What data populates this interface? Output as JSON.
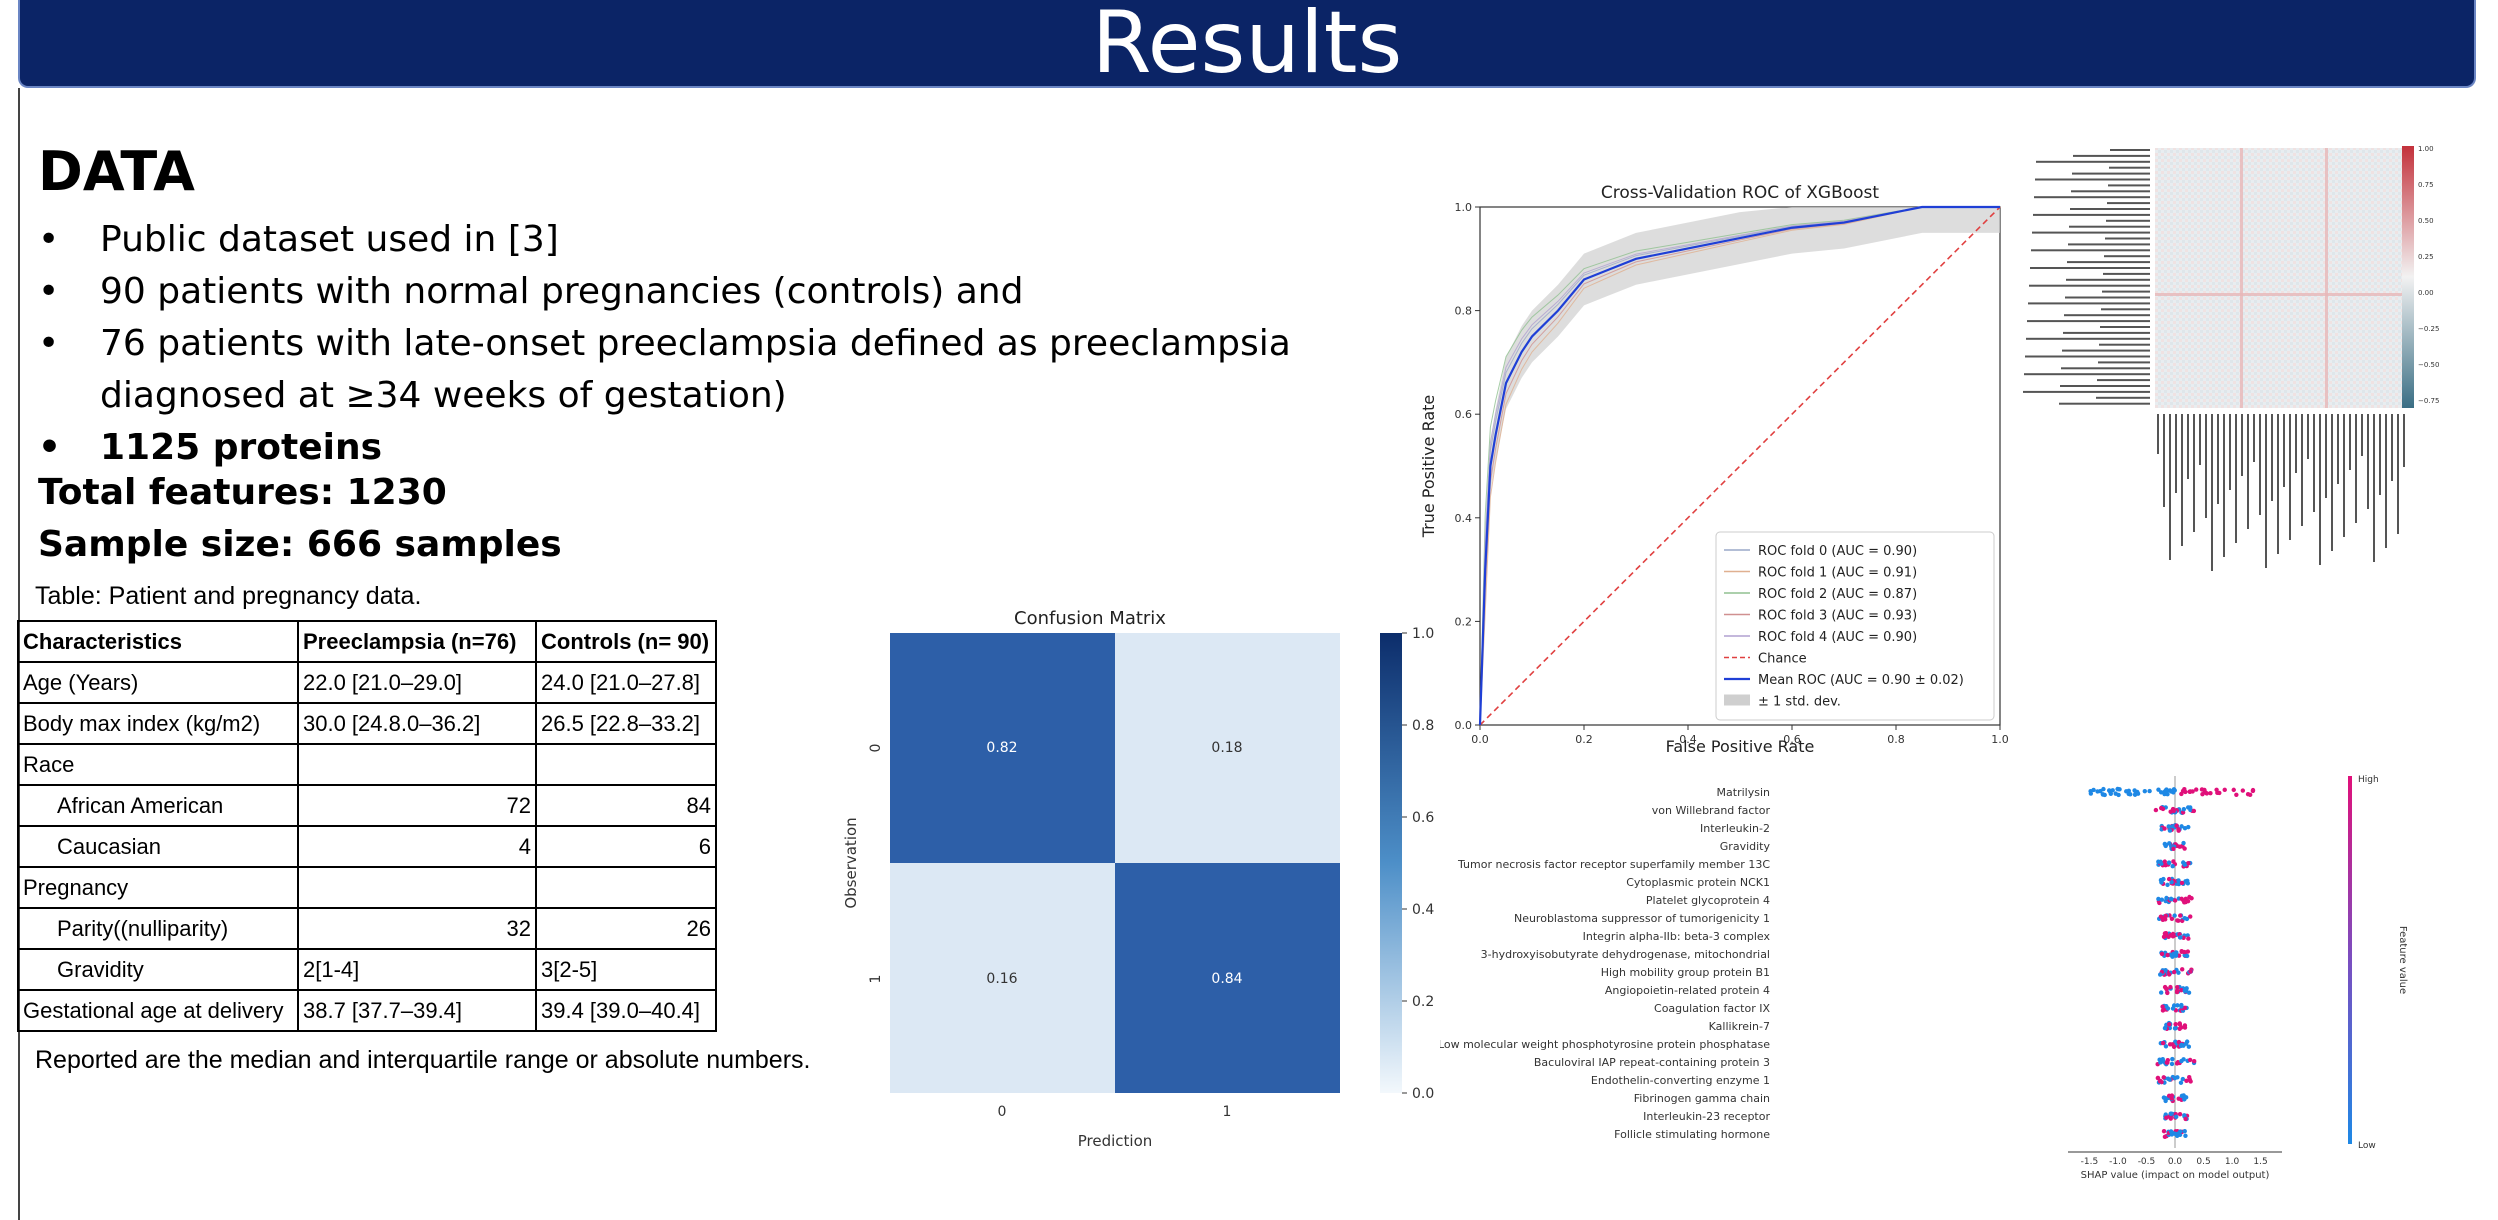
{
  "title": "Results",
  "data_heading": "DATA",
  "bullets": [
    {
      "text": "Public dataset used in [3]",
      "bold": false
    },
    {
      "text": "90 patients with normal pregnancies (controls) and",
      "bold": false
    },
    {
      "text": " 76 patients with late-onset preeclampsia defined as preeclampsia diagnosed at ≥34 weeks of gestation)",
      "bold": false
    },
    {
      "text": "1125 proteins",
      "bold": true
    }
  ],
  "bullet_symbol": "•",
  "total_features": "Total features: 1230",
  "sample_size": "Sample size:  666 samples",
  "table": {
    "caption": "Table:  Patient and pregnancy data.",
    "headers": [
      "Characteristics",
      "Preeclampsia (n=76)",
      "Controls (n= 90)"
    ],
    "rows": [
      {
        "label": "Age (Years)",
        "pe": "22.0 [21.0–29.0]",
        "ctrl": "24.0 [21.0–27.8]",
        "indent": false,
        "numeric": false
      },
      {
        "label": "Body max index (kg/m2)",
        "pe": "30.0 [24.8.0–36.2]",
        "ctrl": "26.5 [22.8–33.2]",
        "indent": false,
        "numeric": false
      },
      {
        "label": "Race",
        "pe": "",
        "ctrl": "",
        "indent": false,
        "numeric": false
      },
      {
        "label": "African American",
        "pe": "72",
        "ctrl": "84",
        "indent": true,
        "numeric": true
      },
      {
        "label": "Caucasian",
        "pe": "4",
        "ctrl": "6",
        "indent": true,
        "numeric": true
      },
      {
        "label": "Pregnancy",
        "pe": "",
        "ctrl": "",
        "indent": false,
        "numeric": false
      },
      {
        "label": "Parity((nulliparity)",
        "pe": "32",
        "ctrl": "26",
        "indent": true,
        "numeric": true
      },
      {
        "label": "Gravidity",
        "pe": "2[1-4]",
        "ctrl": "3[2-5]",
        "indent": true,
        "numeric": false
      },
      {
        "label": "Gestational age at delivery",
        "pe": "38.7 [37.7–39.4]",
        "ctrl": "39.4 [39.0–40.4]",
        "indent": false,
        "numeric": false
      }
    ],
    "footnote": "Reported are the median and interquartile range or absolute numbers."
  },
  "confusion_matrix": {
    "title": "Confusion Matrix",
    "xlabel": "Prediction",
    "ylabel": "Observation",
    "labels": [
      "0",
      "1"
    ],
    "values": [
      [
        "0.82",
        "0.18"
      ],
      [
        "0.16",
        "0.84"
      ]
    ],
    "colorbar_ticks": [
      "1.0",
      "0.8",
      "0.6",
      "0.4",
      "0.2",
      "0.0"
    ],
    "colors": {
      "high": "#2d5fa8",
      "low": "#dce8f4"
    }
  },
  "chart_data": [
    {
      "type": "line",
      "title": "Cross-Validation ROC of XGBoost",
      "xlabel": "False Positive Rate",
      "ylabel": "True Positive Rate",
      "xlim": [
        0,
        1
      ],
      "ylim": [
        0,
        1
      ],
      "xticks": [
        "0.0",
        "0.2",
        "0.4",
        "0.6",
        "0.8",
        "1.0"
      ],
      "yticks": [
        "0.0",
        "0.2",
        "0.4",
        "0.6",
        "0.8",
        "1.0"
      ],
      "legend_position": "bottom-right",
      "legend": [
        "ROC fold 0 (AUC = 0.90)",
        "ROC fold 1 (AUC = 0.91)",
        "ROC fold 2 (AUC = 0.87)",
        "ROC fold 3 (AUC = 0.93)",
        "ROC fold 4 (AUC = 0.90)",
        "Chance",
        "Mean ROC (AUC = 0.90 ± 0.02)",
        "± 1 std. dev."
      ],
      "mean_roc": {
        "x": [
          0,
          0.01,
          0.02,
          0.03,
          0.05,
          0.08,
          0.1,
          0.15,
          0.2,
          0.25,
          0.3,
          0.4,
          0.5,
          0.6,
          0.7,
          0.8,
          0.85,
          0.9,
          1.0
        ],
        "y": [
          0,
          0.3,
          0.5,
          0.56,
          0.66,
          0.72,
          0.75,
          0.8,
          0.86,
          0.88,
          0.9,
          0.92,
          0.94,
          0.96,
          0.97,
          0.99,
          1.0,
          1.0,
          1.0
        ]
      }
    },
    {
      "type": "scatter",
      "kind": "SHAP summary",
      "xlabel": "SHAP value (impact on model output)",
      "xticks": [
        "-1.5",
        "-1.0",
        "-0.5",
        "0.0",
        "0.5",
        "1.0",
        "1.5"
      ],
      "xlim": [
        -1.7,
        1.7
      ],
      "colorbar_label": "Feature value",
      "colorbar_high": "High",
      "colorbar_low": "Low",
      "features": [
        "Matrilysin",
        "von Willebrand factor",
        "Interleukin-2",
        "Gravidity",
        "Tumor necrosis factor receptor superfamily member 13C",
        "Cytoplasmic protein NCK1",
        "Platelet glycoprotein 4",
        "Neuroblastoma suppressor of tumorigenicity 1",
        "Integrin alpha-IIb: beta-3 complex",
        "3-hydroxyisobutyrate dehydrogenase, mitochondrial",
        "High mobility group protein B1",
        "Angiopoietin-related protein 4",
        "Coagulation factor IX",
        "Kallikrein-7",
        "Low molecular weight phosphotyrosine protein phosphatase",
        "Baculoviral IAP repeat-containing protein 3",
        "Endothelin-converting enzyme 1",
        "Fibrinogen gamma chain",
        "Interleukin-23 receptor",
        "Follicle stimulating hormone"
      ],
      "spread": [
        1.5,
        0.35,
        0.25,
        0.2,
        0.3,
        0.25,
        0.3,
        0.28,
        0.25,
        0.25,
        0.3,
        0.25,
        0.22,
        0.2,
        0.25,
        0.35,
        0.3,
        0.2,
        0.22,
        0.2
      ]
    },
    {
      "type": "heatmap",
      "kind": "correlation matrix",
      "colorbar_ticks": [
        "1.00",
        "0.75",
        "0.50",
        "0.25",
        "0.00",
        "−0.25",
        "−0.50",
        "−0.75"
      ]
    }
  ],
  "colors": {
    "title_bar": "#0b2466",
    "roc_mean": "#1f3fd6",
    "chance": "#e04040",
    "shap_high": "#e0107a",
    "shap_low": "#1e88e5"
  }
}
